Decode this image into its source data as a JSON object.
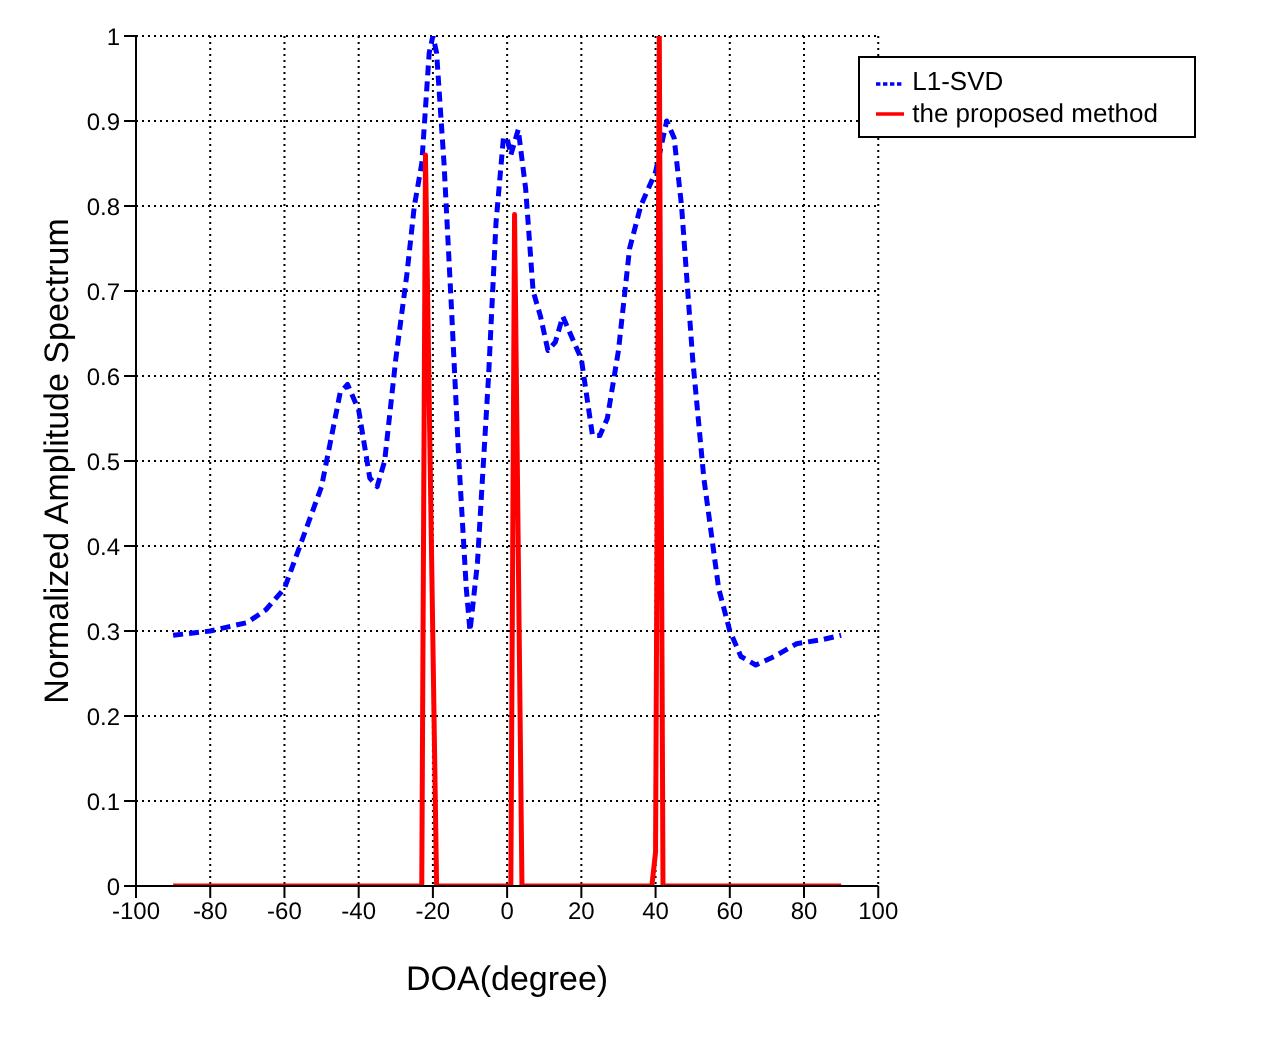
{
  "chart_data": {
    "type": "line",
    "xlabel": "DOA(degree)",
    "ylabel": "Normalized Amplitude Spectrum",
    "xlim": [
      -100,
      100
    ],
    "xticks": [
      -100,
      -80,
      -60,
      -40,
      -20,
      0,
      20,
      40,
      60,
      80,
      100
    ],
    "ylim": [
      0,
      1
    ],
    "yticks": [
      0,
      0.1,
      0.2,
      0.3,
      0.4,
      0.5,
      0.6,
      0.7,
      0.8,
      0.9,
      1
    ],
    "grid": true,
    "legend": "top right",
    "marker": "none",
    "series": [
      {
        "name": "L1-SVD",
        "color": "#0000ff",
        "line_style": "dashed",
        "x": [
          -90,
          -80,
          -70,
          -65,
          -60,
          -55,
          -50,
          -45,
          -43,
          -40,
          -37,
          -35,
          -33,
          -30,
          -27,
          -25,
          -23,
          -21,
          -20,
          -19,
          -17,
          -15,
          -13,
          -11,
          -10,
          -8,
          -5,
          -3,
          -1,
          0,
          1,
          3,
          5,
          7,
          9,
          11,
          13,
          15,
          17,
          20,
          23,
          25,
          27,
          30,
          33,
          36,
          40,
          43,
          45,
          47,
          50,
          53,
          57,
          60,
          63,
          67,
          72,
          78,
          85,
          90
        ],
        "values": [
          0.295,
          0.3,
          0.31,
          0.325,
          0.35,
          0.41,
          0.47,
          0.58,
          0.59,
          0.56,
          0.48,
          0.47,
          0.5,
          0.62,
          0.72,
          0.8,
          0.85,
          0.98,
          1.0,
          0.98,
          0.85,
          0.68,
          0.5,
          0.35,
          0.3,
          0.38,
          0.6,
          0.78,
          0.88,
          0.88,
          0.86,
          0.89,
          0.82,
          0.7,
          0.67,
          0.63,
          0.64,
          0.67,
          0.65,
          0.62,
          0.53,
          0.53,
          0.55,
          0.63,
          0.75,
          0.8,
          0.84,
          0.9,
          0.88,
          0.8,
          0.62,
          0.48,
          0.35,
          0.3,
          0.27,
          0.26,
          0.27,
          0.285,
          0.29,
          0.295
        ]
      },
      {
        "name": "the proposed method",
        "color": "#ff0000",
        "line_style": "solid",
        "x": [
          -90,
          -23,
          -22,
          -19,
          1,
          2,
          4,
          39,
          40,
          41,
          42,
          90
        ],
        "values": [
          0,
          0,
          0.86,
          0,
          0,
          0.79,
          0,
          0,
          0.04,
          1,
          0,
          0
        ]
      }
    ]
  }
}
